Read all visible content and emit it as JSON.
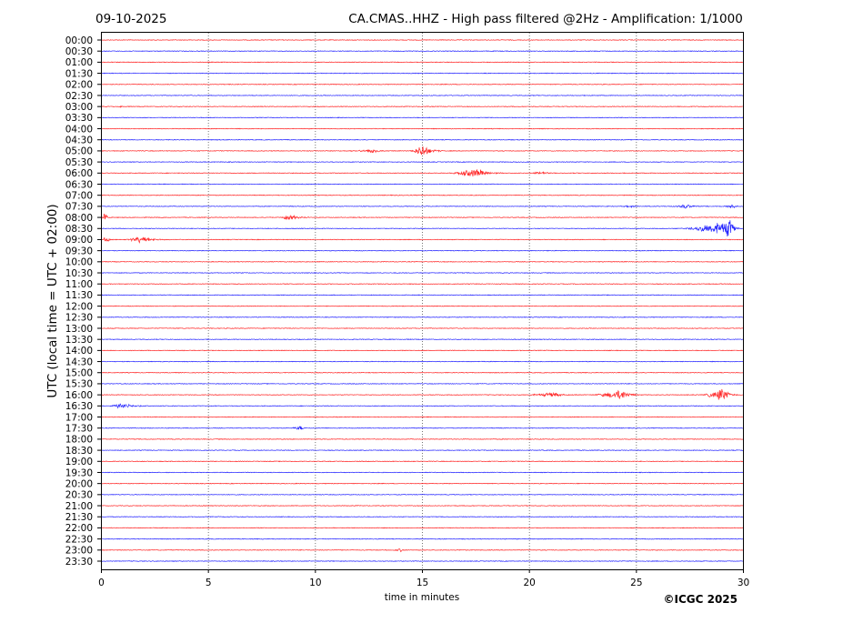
{
  "chart_data": {
    "type": "line",
    "subtype": "helicorder",
    "date": "09-10-2025",
    "title": "CA.CMAS..HHZ - High pass filtered @2Hz - Amplification: 1/1000",
    "xlabel": "time in minutes",
    "ylabel": "UTC (local time = UTC + 02:00)",
    "xlim": [
      0,
      30
    ],
    "xticks": [
      0,
      5,
      10,
      15,
      20,
      25,
      30
    ],
    "row_labels": [
      "00:00",
      "00:30",
      "01:00",
      "01:30",
      "02:00",
      "02:30",
      "03:00",
      "03:30",
      "04:00",
      "04:30",
      "05:00",
      "05:30",
      "06:00",
      "06:30",
      "07:00",
      "07:30",
      "08:00",
      "08:30",
      "09:00",
      "09:30",
      "10:00",
      "10:30",
      "11:00",
      "11:30",
      "12:00",
      "12:30",
      "13:00",
      "13:30",
      "14:00",
      "14:30",
      "15:00",
      "15:30",
      "16:00",
      "16:30",
      "17:00",
      "17:30",
      "18:00",
      "18:30",
      "19:00",
      "19:30",
      "20:00",
      "20:30",
      "21:00",
      "21:30",
      "22:00",
      "22:30",
      "23:00",
      "23:30"
    ],
    "row_colors": [
      "#ff0000",
      "#0000ff"
    ],
    "grid": "vertical dotted at x ticks",
    "events": [
      {
        "row": 6,
        "start": 0.6,
        "end": 1.2,
        "peak": 0.9,
        "amp": 1.0
      },
      {
        "row": 10,
        "start": 10.7,
        "end": 14.0,
        "peak": 12.8,
        "amp": 2.5
      },
      {
        "row": 10,
        "start": 14.2,
        "end": 16.5,
        "peak": 15.0,
        "amp": 7.5
      },
      {
        "row": 12,
        "start": 15.8,
        "end": 19.5,
        "peak": 17.5,
        "amp": 6.0
      },
      {
        "row": 12,
        "start": 19.5,
        "end": 21.8,
        "peak": 20.6,
        "amp": 2.0
      },
      {
        "row": 15,
        "start": 23.5,
        "end": 26.0,
        "peak": 24.8,
        "amp": 1.3
      },
      {
        "row": 15,
        "start": 26.3,
        "end": 28.8,
        "peak": 27.3,
        "amp": 2.8
      },
      {
        "row": 15,
        "start": 28.8,
        "end": 30.0,
        "peak": 29.5,
        "amp": 3.5
      },
      {
        "row": 16,
        "start": 0.0,
        "end": 0.6,
        "peak": 0.15,
        "amp": 6.0
      },
      {
        "row": 16,
        "start": 2.1,
        "end": 2.5,
        "peak": 2.3,
        "amp": 1.2
      },
      {
        "row": 16,
        "start": 8.2,
        "end": 10.8,
        "peak": 8.7,
        "amp": 3.5
      },
      {
        "row": 17,
        "start": 26.5,
        "end": 30.0,
        "peak": 29.4,
        "amp": 11.0
      },
      {
        "row": 18,
        "start": 0.0,
        "end": 0.7,
        "peak": 0.2,
        "amp": 5.0
      },
      {
        "row": 18,
        "start": 0.7,
        "end": 4.3,
        "peak": 1.8,
        "amp": 3.8
      },
      {
        "row": 32,
        "start": 19.0,
        "end": 22.5,
        "peak": 21.2,
        "amp": 3.0
      },
      {
        "row": 32,
        "start": 22.5,
        "end": 25.5,
        "peak": 24.3,
        "amp": 7.0
      },
      {
        "row": 32,
        "start": 27.8,
        "end": 30.0,
        "peak": 29.0,
        "amp": 9.0
      },
      {
        "row": 33,
        "start": 0.0,
        "end": 3.6,
        "peak": 0.9,
        "amp": 3.0
      },
      {
        "row": 35,
        "start": 8.6,
        "end": 9.8,
        "peak": 9.3,
        "amp": 3.0
      },
      {
        "row": 46,
        "start": 13.3,
        "end": 14.6,
        "peak": 14.0,
        "amp": 2.0
      }
    ]
  },
  "copyright": "©ICGC 2025"
}
